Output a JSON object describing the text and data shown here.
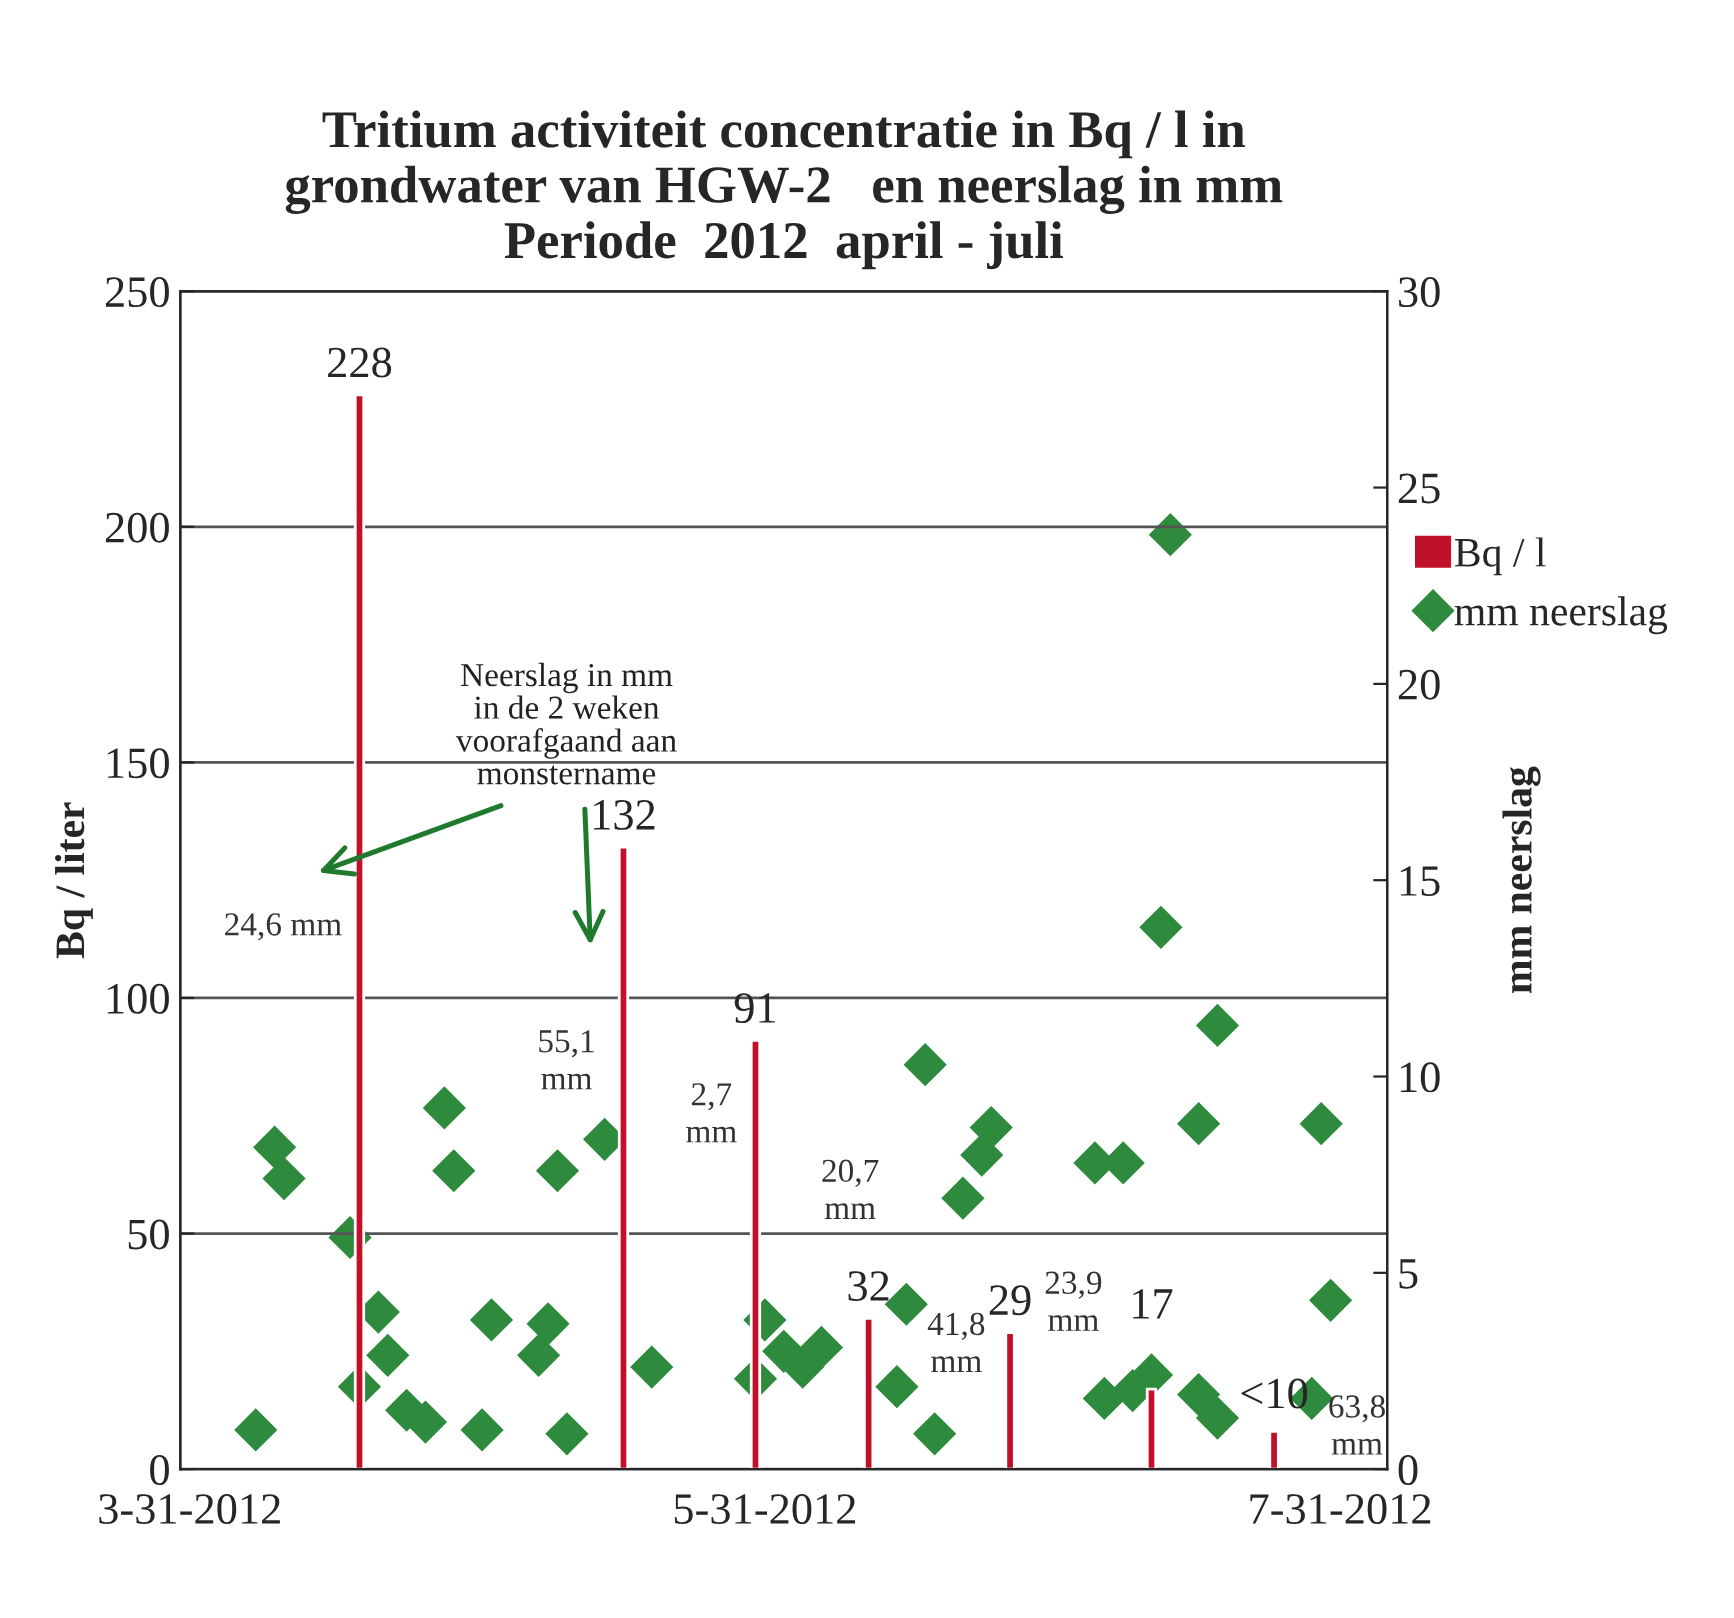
{
  "chart_data": {
    "type": "bar",
    "title": "Tritium activiteit concentratie in Bq / l in\ngrondwater van HGW-2   en neerslag in mm\nPeriode  2012  april - juli",
    "ylabel": "Bq / liter",
    "y2label": "mm neerslag",
    "xlim": [
      "2012-03-30",
      "2012-08-05"
    ],
    "xticks": [
      {
        "value": "2012-03-31",
        "label": "3-31-2012"
      },
      {
        "value": "2012-05-31",
        "label": "5-31-2012"
      },
      {
        "value": "2012-07-31",
        "label": "7-31-2012"
      }
    ],
    "ylim": [
      0,
      250
    ],
    "yticks": [
      0,
      50,
      100,
      150,
      200,
      250
    ],
    "y2lim": [
      0,
      30
    ],
    "y2ticks": [
      0,
      5,
      10,
      15,
      20,
      25,
      30
    ],
    "grid": "y",
    "legend": "right",
    "series": [
      {
        "name": "Bq / l",
        "color": "#c0102a",
        "x": [
          "2012-04-18",
          "2012-05-16",
          "2012-05-30",
          "2012-06-11",
          "2012-06-26",
          "2012-07-11",
          "2012-07-24"
        ],
        "values": [
          228,
          132,
          91,
          32,
          29,
          17,
          8
        ],
        "value_labels": [
          "228",
          "132",
          "91",
          "32",
          "29",
          "17",
          "<10"
        ]
      },
      {
        "name": "mm neerslag",
        "type": "scatter",
        "axis": "y2",
        "marker": "diamond",
        "color": "#2e8b3e",
        "x": [
          "2012-04-07",
          "2012-04-09",
          "2012-04-10",
          "2012-04-17",
          "2012-04-18",
          "2012-04-20",
          "2012-04-21",
          "2012-04-23",
          "2012-04-25",
          "2012-04-27",
          "2012-04-28",
          "2012-05-01",
          "2012-05-02",
          "2012-05-07",
          "2012-05-08",
          "2012-05-09",
          "2012-05-10",
          "2012-05-14",
          "2012-05-19",
          "2012-05-30",
          "2012-05-31",
          "2012-06-02",
          "2012-06-04",
          "2012-06-06",
          "2012-06-14",
          "2012-06-15",
          "2012-06-17",
          "2012-06-18",
          "2012-06-21",
          "2012-06-23",
          "2012-06-24",
          "2012-07-05",
          "2012-07-06",
          "2012-07-08",
          "2012-07-09",
          "2012-07-11",
          "2012-07-12",
          "2012-07-13",
          "2012-07-16",
          "2012-07-16",
          "2012-07-18",
          "2012-07-18",
          "2012-07-28",
          "2012-07-29",
          "2012-07-30"
        ],
        "values": [
          1.0,
          8.2,
          7.4,
          5.9,
          2.1,
          4.0,
          2.9,
          1.5,
          1.2,
          9.2,
          7.6,
          1.0,
          3.8,
          2.9,
          3.7,
          7.6,
          0.9,
          8.4,
          2.6,
          2.3,
          3.8,
          3.0,
          2.6,
          3.1,
          2.1,
          4.2,
          10.3,
          0.9,
          6.9,
          8.0,
          8.7,
          7.8,
          1.8,
          7.8,
          2.0,
          2.4,
          13.8,
          23.8,
          8.8,
          1.9,
          11.3,
          1.3,
          1.8,
          8.8,
          4.3
        ]
      }
    ],
    "annotations": [
      {
        "text": "Neerslag in mm\nin de 2 weken\nvoorafgaand aan\nmonstername"
      },
      "24,6 mm",
      "55,1\nmm",
      "2,7\nmm",
      "20,7\nmm",
      "41,8\nmm",
      "23,9\nmm",
      "63,8\nmm"
    ]
  }
}
